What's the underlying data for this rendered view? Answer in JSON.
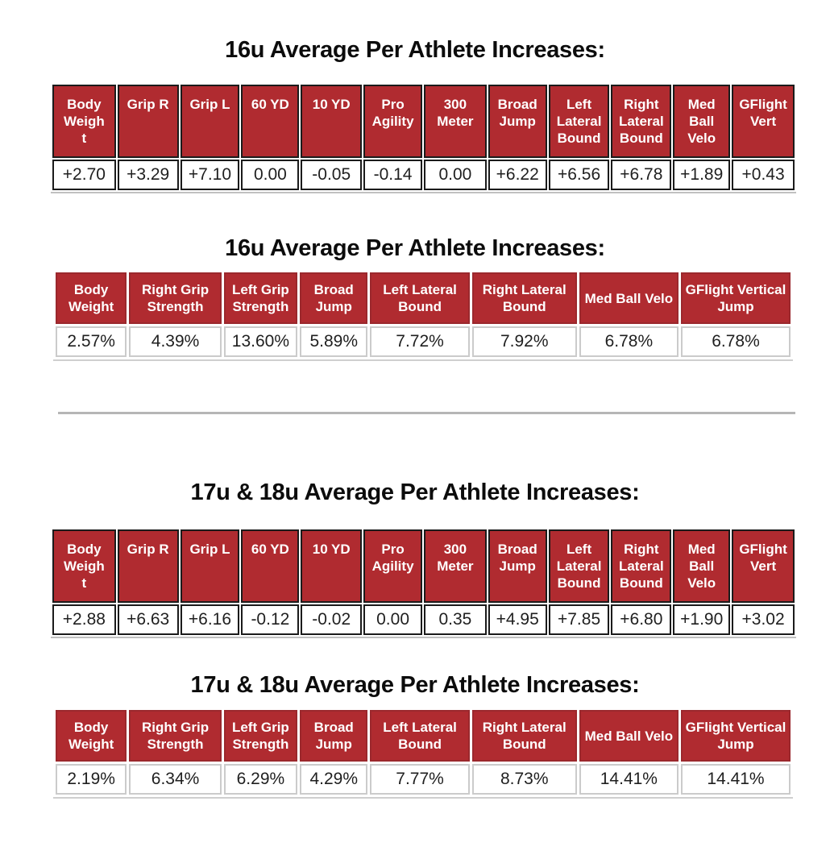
{
  "colors": {
    "header_red": "#B02B30",
    "raw_border": "#1B1B1B",
    "pct_header_border": "#9B282D",
    "pct_cell_border": "#CBCBCB",
    "divider": "#B6B6B6",
    "title_color": "#0C0C0C",
    "value_color": "#1F1F1F"
  },
  "sections": [
    {
      "age_group": "16u",
      "raw": {
        "title": "16u Average Per Athlete Increases:",
        "headers": [
          "Body Weight",
          "Grip R",
          "Grip L",
          "60 YD",
          "10 YD",
          "Pro Agility",
          "300 Meter",
          "Broad Jump",
          "Left Lateral Bound",
          "Right Lateral Bound",
          "Med Ball Velo",
          "GFlight Vert"
        ],
        "values": [
          "+2.70",
          "+3.29",
          "+7.10",
          "0.00",
          "-0.05",
          "-0.14",
          "0.00",
          "+6.22",
          "+6.56",
          "+6.78",
          "+1.89",
          "+0.43"
        ]
      },
      "pct": {
        "title": "16u Average Per Athlete Increases:",
        "headers": [
          "Body Weight",
          "Right Grip Strength",
          "Left Grip Strength",
          "Broad Jump",
          "Left Lateral Bound",
          "Right Lateral Bound",
          "Med Ball Velo",
          "GFlight Vertical Jump"
        ],
        "values": [
          "2.57%",
          "4.39%",
          "13.60%",
          "5.89%",
          "7.72%",
          "7.92%",
          "6.78%",
          "6.78%"
        ]
      }
    },
    {
      "age_group": "17u & 18u",
      "raw": {
        "title": "17u & 18u Average Per Athlete Increases:",
        "headers": [
          "Body Weight",
          "Grip R",
          "Grip L",
          "60 YD",
          "10 YD",
          "Pro Agility",
          "300 Meter",
          "Broad Jump",
          "Left Lateral Bound",
          "Right Lateral Bound",
          "Med Ball Velo",
          "GFlight Vert"
        ],
        "values": [
          "+2.88",
          "+6.63",
          "+6.16",
          "-0.12",
          "-0.02",
          "0.00",
          "0.35",
          "+4.95",
          "+7.85",
          "+6.80",
          "+1.90",
          "+3.02"
        ]
      },
      "pct": {
        "title": "17u & 18u Average Per Athlete Increases:",
        "headers": [
          "Body Weight",
          "Right Grip Strength",
          "Left Grip Strength",
          "Broad Jump",
          "Left Lateral Bound",
          "Right Lateral Bound",
          "Med Ball Velo",
          "GFlight Vertical Jump"
        ],
        "values": [
          "2.19%",
          "6.34%",
          "6.29%",
          "4.29%",
          "7.77%",
          "8.73%",
          "14.41%",
          "14.41%"
        ]
      }
    }
  ]
}
